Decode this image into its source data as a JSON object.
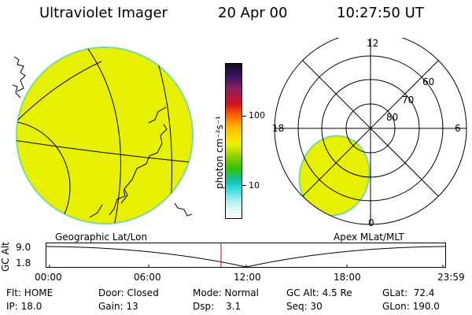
{
  "header": {
    "instrument": "Ultraviolet Imager",
    "date": "20 Apr 00",
    "time": "10:27:50 UT"
  },
  "colorbar": {
    "unit_label": "photon cm⁻²s⁻¹",
    "tick_100": "100",
    "tick_10": "10"
  },
  "panels": {
    "geo_label": "Geographic Lat/Lon",
    "polar_label": "Apex MLat/MLT"
  },
  "polar": {
    "mlt_12": "12",
    "mlt_18": "18",
    "mlt_6": "6",
    "mlt_0": "0",
    "lat_60": "60",
    "lat_70": "70",
    "lat_80": "80"
  },
  "orbit": {
    "ylabel": "GC Alt",
    "y_top": "9.0",
    "y_bottom": "1.8",
    "times": [
      "00:00",
      "06:00",
      "12:00",
      "18:00",
      "23:59"
    ]
  },
  "footer": {
    "row1": [
      "Flt: HOME",
      "Door: Closed",
      "Mode: Normal",
      "GC Alt: 4.5 Re",
      "GLat:  72.4"
    ],
    "row2": [
      "IP: 18.0",
      "Gain: 13",
      "Dsp:",
      "3.1",
      "Seq: 30",
      "GLon: 190.0"
    ]
  },
  "colors": {
    "emission": "#e6f000",
    "limb": "#7fd8a0"
  }
}
